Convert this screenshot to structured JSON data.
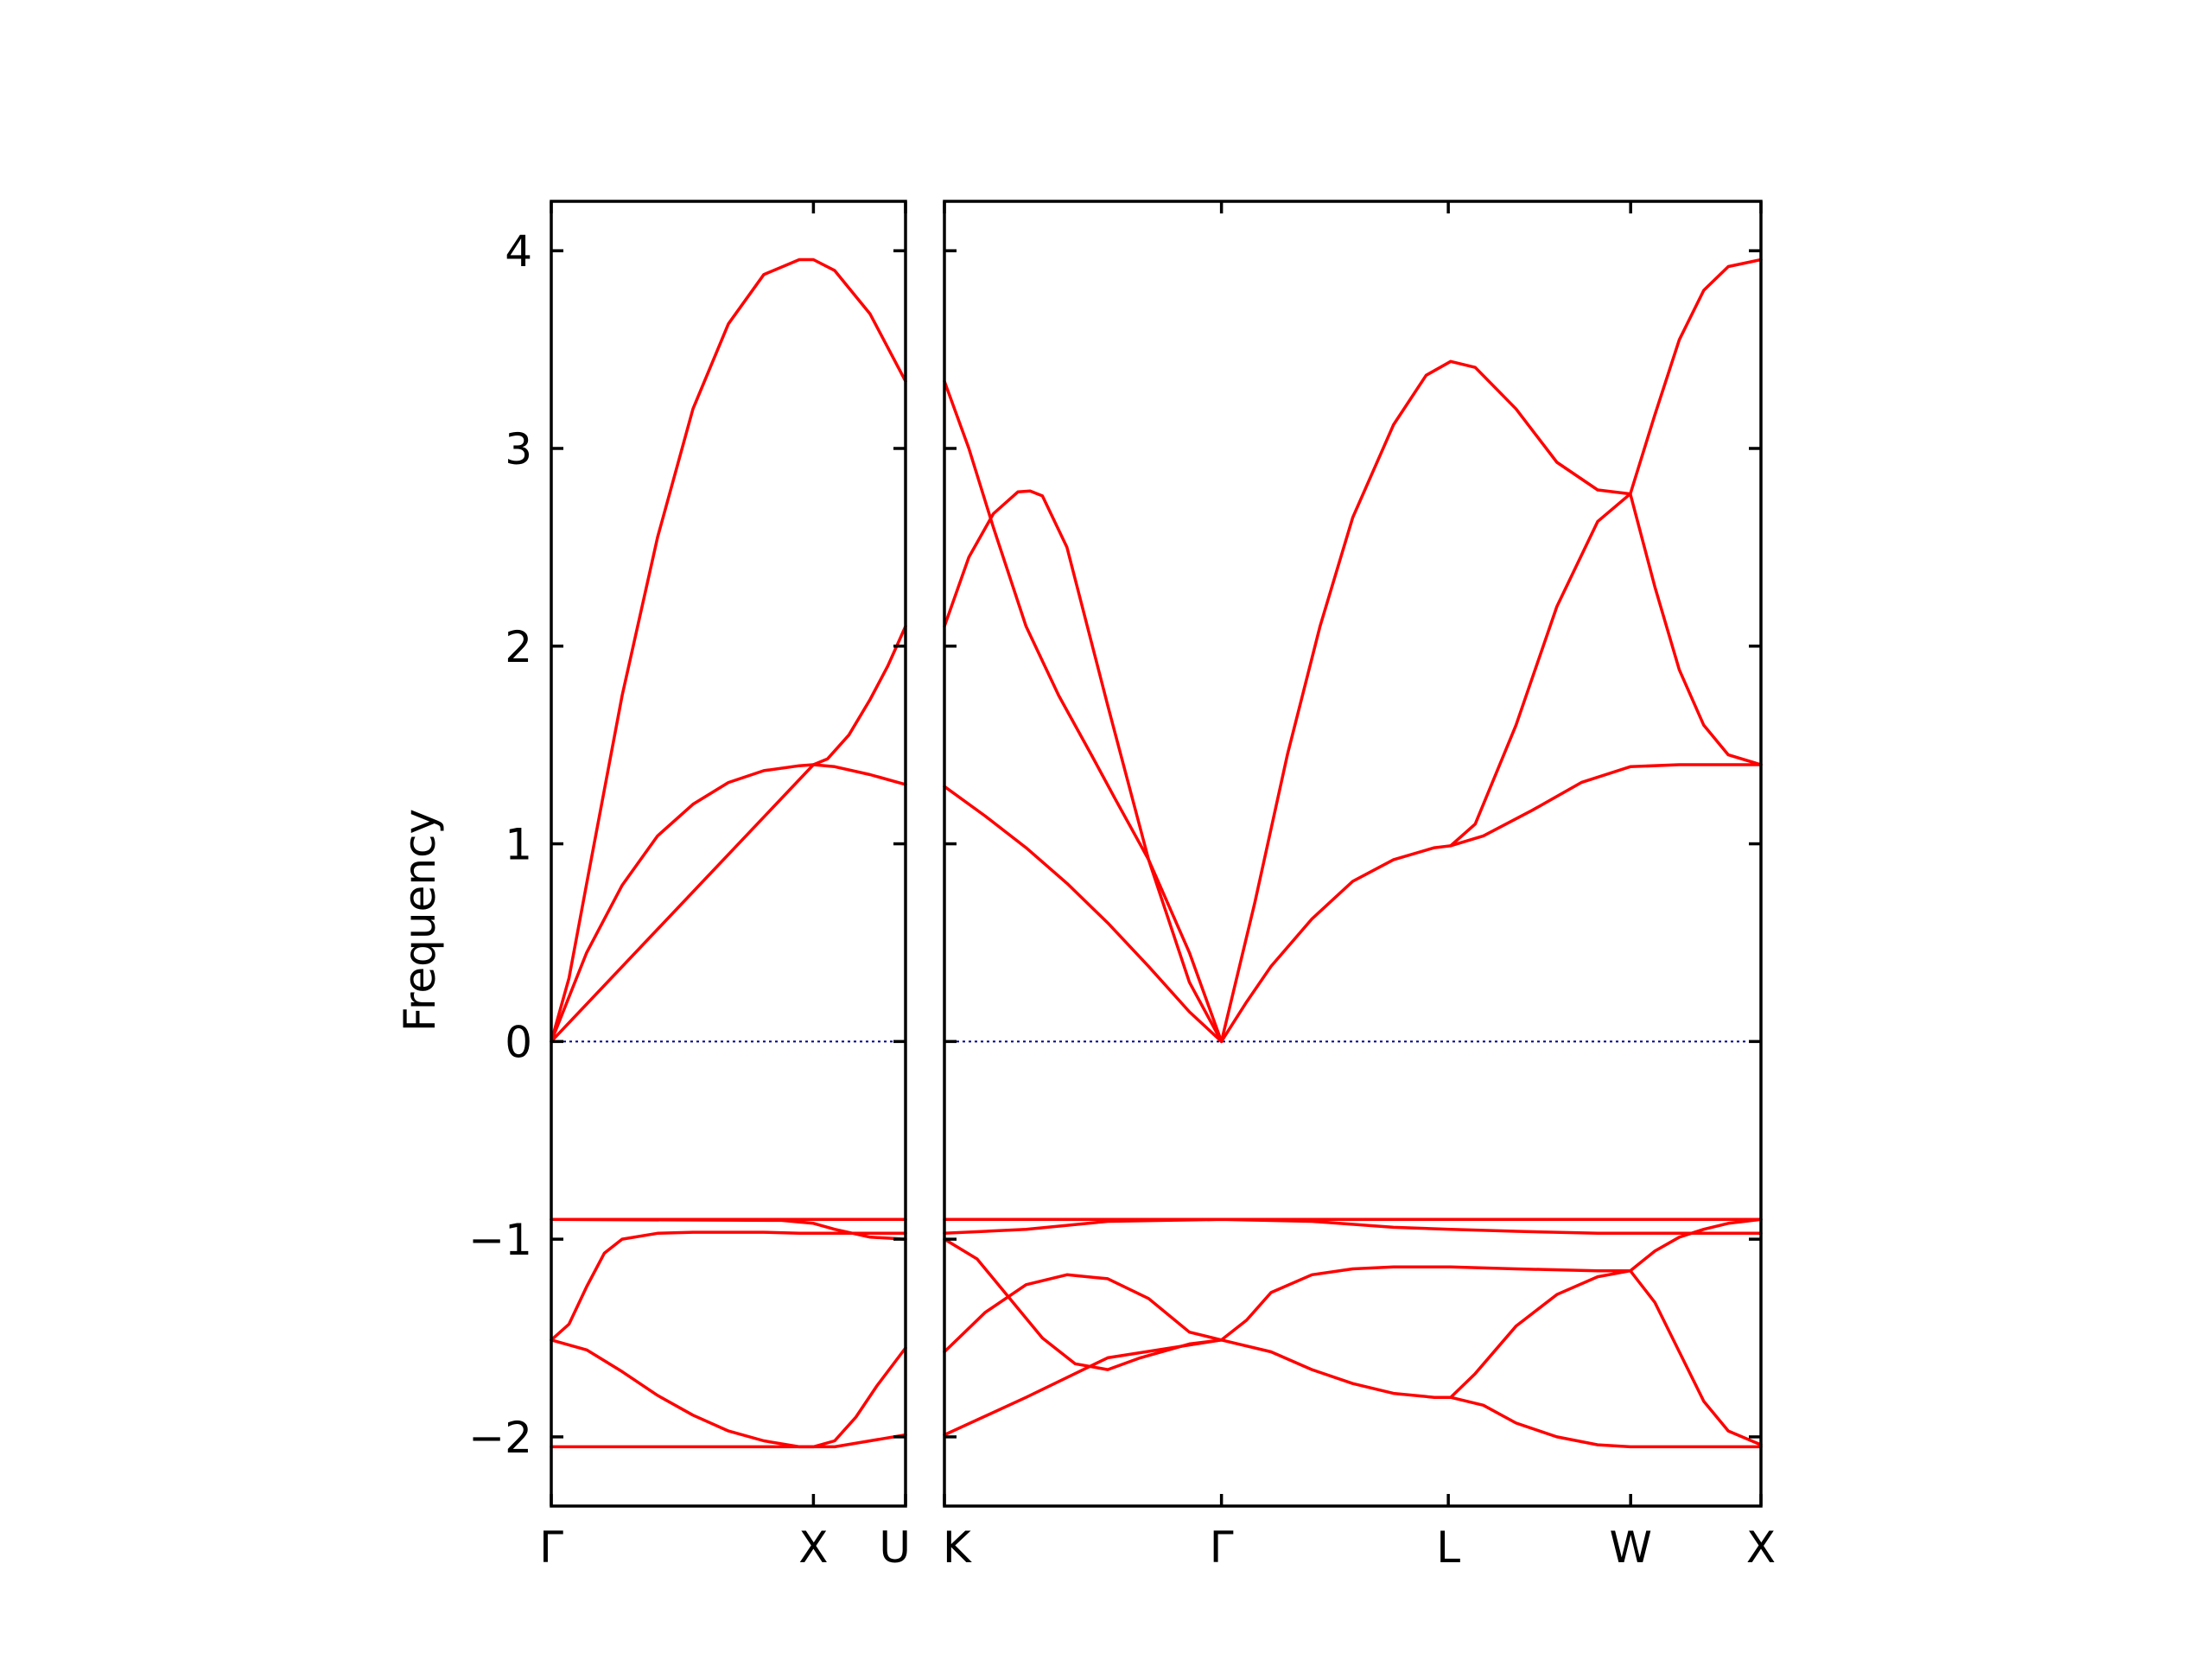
{
  "chart_data": {
    "type": "line",
    "title": "",
    "ylabel": "Frequency",
    "ylim": [
      -2.35,
      4.25
    ],
    "yticks": [
      4,
      3,
      2,
      1,
      0,
      -1,
      -2
    ],
    "ytick_labels": [
      "4",
      "3",
      "2",
      "1",
      "0",
      "−1",
      "−2"
    ],
    "band_color": "#ff0000",
    "zero_line_color": "#00008b",
    "grid": false,
    "segments": [
      {
        "xlim": [
          0,
          1
        ],
        "points": [
          {
            "label": "Γ",
            "x": 0
          },
          {
            "label": "X",
            "x": 0.74
          },
          {
            "label": "U",
            "x": 1
          }
        ],
        "bands": [
          {
            "x": [
              0,
              0.05,
              0.1,
              0.2,
              0.3,
              0.4,
              0.5,
              0.6,
              0.7,
              0.74,
              0.8,
              0.9,
              1
            ],
            "y": [
              0,
              0.32,
              0.8,
              1.75,
              2.55,
              3.2,
              3.63,
              3.88,
              3.955,
              3.955,
              3.9,
              3.68,
              3.34
            ]
          },
          {
            "x": [
              0,
              0.1,
              0.2,
              0.3,
              0.4,
              0.5,
              0.6,
              0.7,
              0.74,
              0.8,
              0.9,
              1
            ],
            "y": [
              0,
              0.45,
              0.79,
              1.04,
              1.2,
              1.31,
              1.37,
              1.395,
              1.4,
              1.39,
              1.35,
              1.3
            ]
          },
          {
            "x": [
              0,
              0.74,
              0.78,
              0.84,
              0.9,
              0.95,
              1
            ],
            "y": [
              0,
              1.4,
              1.43,
              1.55,
              1.73,
              1.9,
              2.1
            ]
          },
          {
            "x": [
              0,
              1
            ],
            "y": [
              -0.9,
              -0.9
            ]
          },
          {
            "x": [
              0,
              0.05,
              0.1,
              0.15,
              0.2,
              0.3,
              0.4,
              0.5,
              0.6,
              0.7,
              0.74,
              0.8,
              0.9,
              1
            ],
            "y": [
              -1.51,
              -1.43,
              -1.24,
              -1.07,
              -1.0,
              -0.97,
              -0.965,
              -0.965,
              -0.965,
              -0.97,
              -0.97,
              -0.97,
              -0.97,
              -0.97
            ]
          },
          {
            "x": [
              0,
              0.1,
              0.2,
              0.3,
              0.4,
              0.5,
              0.6,
              0.7,
              0.74,
              0.8,
              0.9,
              1
            ],
            "y": [
              -1.51,
              -1.56,
              -1.67,
              -1.79,
              -1.89,
              -1.97,
              -2.02,
              -2.05,
              -2.05,
              -2.05,
              -2.02,
              -1.99
            ]
          },
          {
            "x": [
              0,
              0.74,
              0.8,
              0.86,
              0.92,
              1
            ],
            "y": [
              -2.05,
              -2.05,
              -2.02,
              -1.9,
              -1.74,
              -1.55
            ]
          },
          {
            "x": [
              0,
              0.65,
              0.74,
              0.8,
              0.9,
              1
            ],
            "y": [
              -0.9,
              -0.905,
              -0.92,
              -0.95,
              -0.99,
              -1.0
            ]
          }
        ]
      },
      {
        "xlim": [
          0,
          1
        ],
        "points": [
          {
            "label": "K",
            "x": 0
          },
          {
            "label": "Γ",
            "x": 0.3393
          },
          {
            "label": "L",
            "x": 0.6171
          },
          {
            "label": "W",
            "x": 0.8404
          },
          {
            "label": "X",
            "x": 1
          }
        ],
        "bands": [
          {
            "x": [
              0,
              0.03,
              0.06,
              0.1,
              0.14,
              0.18,
              0.21,
              0.25,
              0.3,
              0.3393
            ],
            "y": [
              3.34,
              3.0,
              2.6,
              2.1,
              1.75,
              1.45,
              1.22,
              0.92,
              0.45,
              0
            ]
          },
          {
            "x": [
              0,
              0.03,
              0.06,
              0.09,
              0.105,
              0.12,
              0.15,
              0.2,
              0.25,
              0.3,
              0.3393
            ],
            "y": [
              2.1,
              2.45,
              2.67,
              2.78,
              2.785,
              2.76,
              2.5,
              1.7,
              0.92,
              0.3,
              0
            ]
          },
          {
            "x": [
              0,
              0.05,
              0.1,
              0.15,
              0.2,
              0.25,
              0.3,
              0.3393
            ],
            "y": [
              1.29,
              1.14,
              0.98,
              0.8,
              0.6,
              0.38,
              0.15,
              0
            ]
          },
          {
            "x": [
              0.3393,
              0.37,
              0.4,
              0.45,
              0.5,
              0.55,
              0.6,
              0.62
            ],
            "y": [
              0,
              0.2,
              0.38,
              0.62,
              0.81,
              0.92,
              0.98,
              0.99
            ]
          },
          {
            "x": [
              0.3393,
              0.38,
              0.42,
              0.46,
              0.5,
              0.55,
              0.59,
              0.62,
              0.65,
              0.7,
              0.75,
              0.8,
              0.84
            ],
            "y": [
              0,
              0.7,
              1.45,
              2.1,
              2.65,
              3.12,
              3.37,
              3.44,
              3.41,
              3.2,
              2.93,
              2.79,
              2.77
            ]
          },
          {
            "x": [
              0.62,
              0.65,
              0.7,
              0.75,
              0.8,
              0.84
            ],
            "y": [
              0.99,
              1.1,
              1.6,
              2.2,
              2.63,
              2.77
            ]
          },
          {
            "x": [
              0.62,
              0.66,
              0.72,
              0.78,
              0.84,
              0.9,
              1
            ],
            "y": [
              0.99,
              1.04,
              1.17,
              1.31,
              1.39,
              1.4,
              1.4
            ]
          },
          {
            "x": [
              0.84,
              0.87,
              0.9,
              0.93,
              0.96,
              1
            ],
            "y": [
              2.77,
              2.3,
              1.88,
              1.6,
              1.45,
              1.4
            ]
          },
          {
            "x": [
              0.84,
              0.87,
              0.9,
              0.93,
              0.96,
              1
            ],
            "y": [
              2.77,
              3.17,
              3.55,
              3.8,
              3.92,
              3.955
            ]
          },
          {
            "x": [
              0,
              0.1,
              0.2,
              0.3393,
              0.5,
              0.62,
              0.8,
              1
            ],
            "y": [
              -0.9,
              -0.9,
              -0.9,
              -0.9,
              -0.9,
              -0.9,
              -0.9,
              -0.9
            ]
          },
          {
            "x": [
              0,
              0.1,
              0.2,
              0.3393,
              0.45,
              0.55,
              0.62,
              0.7,
              0.8,
              0.84,
              0.9,
              1
            ],
            "y": [
              -0.97,
              -0.95,
              -0.91,
              -0.9,
              -0.91,
              -0.94,
              -0.95,
              -0.96,
              -0.97,
              -0.97,
              -0.97,
              -0.97
            ]
          },
          {
            "x": [
              0,
              0.05,
              0.1,
              0.15,
              0.2,
              0.25,
              0.3,
              0.3393
            ],
            "y": [
              -1.57,
              -1.37,
              -1.23,
              -1.18,
              -1.2,
              -1.3,
              -1.47,
              -1.51
            ]
          },
          {
            "x": [
              0,
              0.04,
              0.08,
              0.12,
              0.16,
              0.2,
              0.24,
              0.3,
              0.3393
            ],
            "y": [
              -1.0,
              -1.1,
              -1.3,
              -1.5,
              -1.63,
              -1.66,
              -1.6,
              -1.53,
              -1.51
            ]
          },
          {
            "x": [
              0,
              0.1,
              0.2,
              0.3393
            ],
            "y": [
              -1.99,
              -1.8,
              -1.6,
              -1.51
            ]
          },
          {
            "x": [
              0.3393,
              0.37,
              0.4,
              0.45,
              0.5,
              0.55,
              0.62,
              0.7,
              0.8,
              0.84
            ],
            "y": [
              -1.51,
              -1.41,
              -1.27,
              -1.18,
              -1.15,
              -1.14,
              -1.14,
              -1.15,
              -1.16,
              -1.16
            ]
          },
          {
            "x": [
              0.3393,
              0.4,
              0.45,
              0.5,
              0.55,
              0.6,
              0.62
            ],
            "y": [
              -1.51,
              -1.57,
              -1.66,
              -1.73,
              -1.78,
              -1.8,
              -1.8
            ]
          },
          {
            "x": [
              0.62,
              0.65,
              0.7,
              0.75,
              0.8,
              0.84
            ],
            "y": [
              -1.8,
              -1.68,
              -1.44,
              -1.28,
              -1.19,
              -1.16
            ]
          },
          {
            "x": [
              0.62,
              0.66,
              0.7,
              0.75,
              0.8,
              0.84,
              0.9,
              1
            ],
            "y": [
              -1.8,
              -1.84,
              -1.93,
              -2.0,
              -2.04,
              -2.05,
              -2.05,
              -2.05
            ]
          },
          {
            "x": [
              0.84,
              0.87,
              0.9,
              0.93,
              0.96,
              1
            ],
            "y": [
              -1.16,
              -1.32,
              -1.57,
              -1.82,
              -1.97,
              -2.04
            ]
          },
          {
            "x": [
              0.84,
              0.87,
              0.9,
              0.93,
              0.96,
              1
            ],
            "y": [
              -1.16,
              -1.06,
              -0.99,
              -0.95,
              -0.92,
              -0.9
            ]
          }
        ]
      }
    ]
  }
}
